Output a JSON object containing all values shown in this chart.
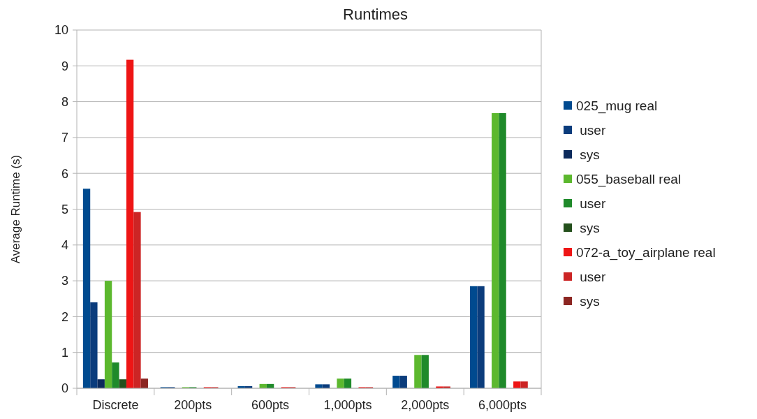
{
  "chart_data": {
    "type": "bar",
    "title": "Runtimes",
    "ylabel": "Average Runtime (s)",
    "categories": [
      "Discrete",
      "200pts",
      "600pts",
      "1,000pts",
      "2,000pts",
      "6,000pts"
    ],
    "series": [
      {
        "name": "025_mug real",
        "color": "#004a8f",
        "values": [
          5.57,
          0.03,
          0.06,
          0.11,
          0.35,
          2.85
        ]
      },
      {
        "name": " user",
        "color": "#0b3c7c",
        "values": [
          2.4,
          0.03,
          0.06,
          0.11,
          0.35,
          2.85
        ]
      },
      {
        "name": " sys",
        "color": "#0c2a5c",
        "values": [
          0.25,
          0,
          0,
          0,
          0,
          0
        ]
      },
      {
        "name": "055_baseball real",
        "color": "#5cb82e",
        "values": [
          3.0,
          0.03,
          0.12,
          0.27,
          0.93,
          7.68
        ]
      },
      {
        "name": " user",
        "color": "#1f8a2a",
        "values": [
          0.72,
          0.03,
          0.12,
          0.27,
          0.93,
          7.68
        ]
      },
      {
        "name": " sys",
        "color": "#24501c",
        "values": [
          0.25,
          0,
          0,
          0,
          0,
          0
        ]
      },
      {
        "name": "072-a_toy_airplane real",
        "color": "#ee1515",
        "values": [
          9.17,
          0.03,
          0.03,
          0.03,
          0.05,
          0.19
        ]
      },
      {
        "name": " user",
        "color": "#cc2525",
        "values": [
          4.92,
          0.03,
          0.03,
          0.03,
          0.05,
          0.19
        ]
      },
      {
        "name": " sys",
        "color": "#8c2622",
        "values": [
          0.27,
          0,
          0,
          0,
          0,
          0
        ]
      }
    ],
    "ylim": [
      0,
      10
    ],
    "yticks": [
      0,
      1,
      2,
      3,
      4,
      5,
      6,
      7,
      8,
      9,
      10
    ],
    "grid": "y",
    "legend": "right"
  }
}
